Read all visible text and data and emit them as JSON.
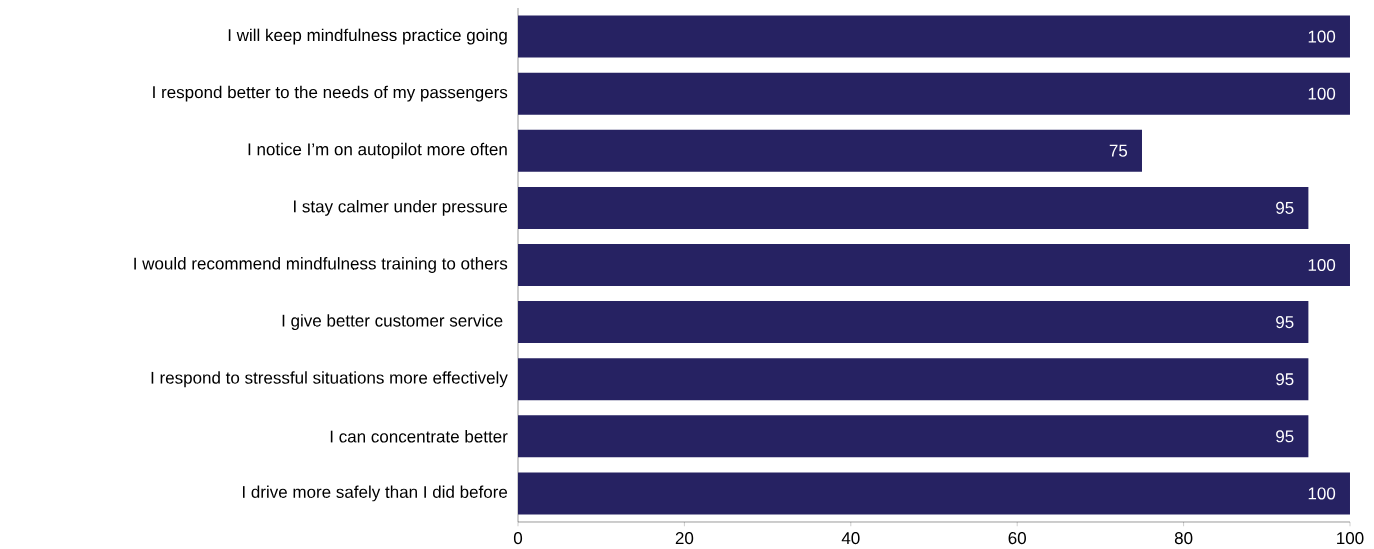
{
  "chart_data": {
    "type": "bar",
    "orientation": "horizontal",
    "categories": [
      "I will keep mindfulness practice going",
      "I respond better to the needs of my passengers",
      "I notice I’m on autopilot more often",
      "I stay calmer under pressure",
      "I would recommend mindfulness training to others",
      "I give better customer service ",
      "I respond to stressful situations more effectively",
      "I can concentrate better",
      "I drive more safely than I did before"
    ],
    "values": [
      100,
      100,
      75,
      95,
      100,
      95,
      95,
      95,
      100
    ],
    "color": "#262262",
    "data_labels": true,
    "xlim": [
      0,
      100
    ],
    "xticks": [
      0,
      20,
      40,
      60,
      80,
      100
    ]
  }
}
